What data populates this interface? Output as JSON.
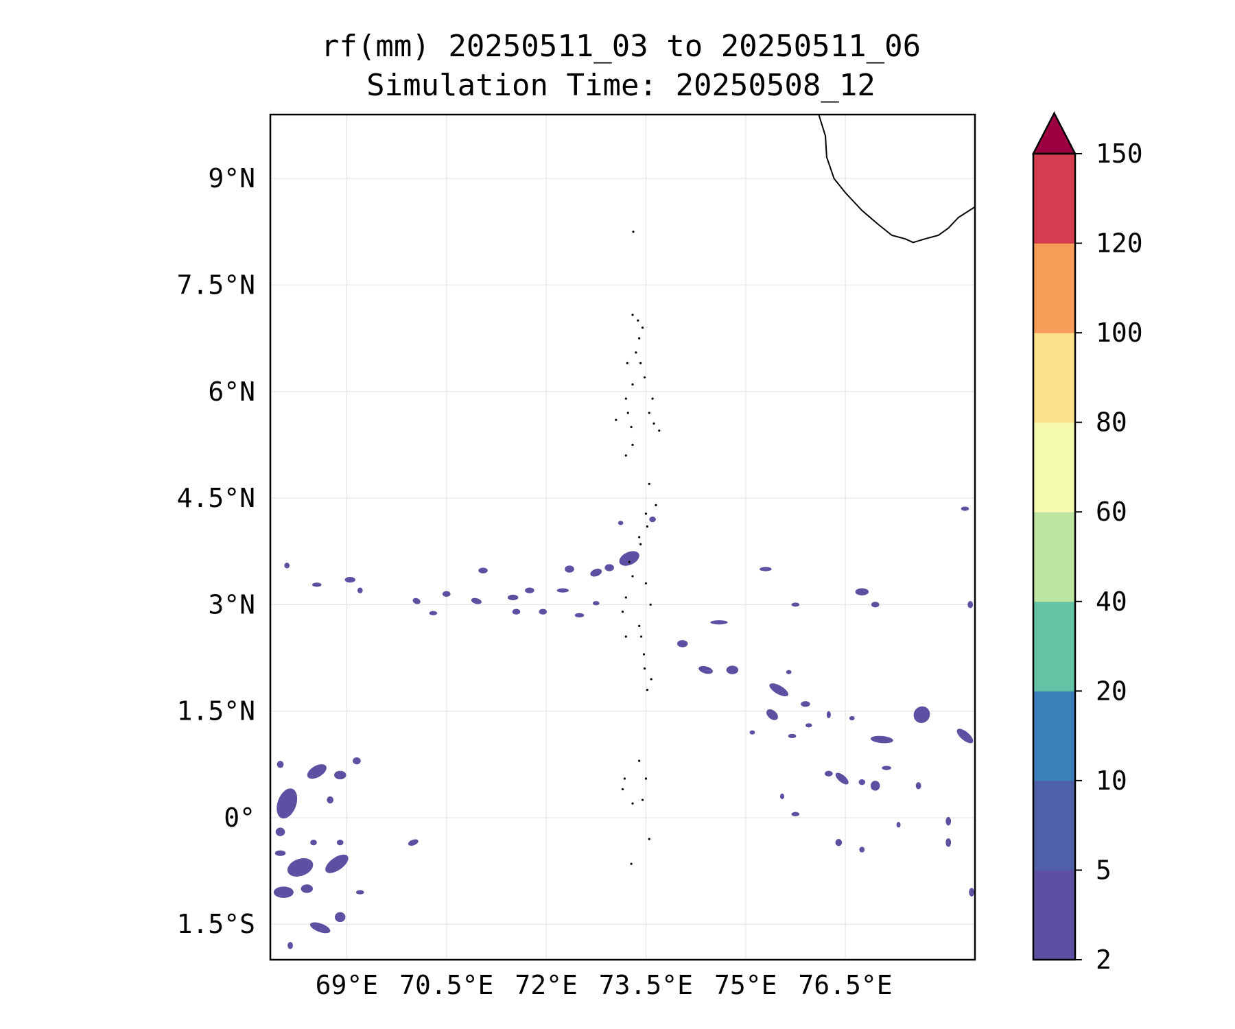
{
  "title": {
    "line1": "rf(mm) 20250511_03 to 20250511_06",
    "line2": "Simulation Time: 20250508_12"
  },
  "map": {
    "lon_range": [
      67.85,
      78.45
    ],
    "lat_range": [
      -2.0,
      9.9
    ],
    "lon_ticks": [
      {
        "value": 69.0,
        "label": "69°E"
      },
      {
        "value": 70.5,
        "label": "70.5°E"
      },
      {
        "value": 72.0,
        "label": "72°E"
      },
      {
        "value": 73.5,
        "label": "73.5°E"
      },
      {
        "value": 75.0,
        "label": "75°E"
      },
      {
        "value": 76.5,
        "label": "76.5°E"
      }
    ],
    "lat_ticks": [
      {
        "value": 9.0,
        "label": "9°N"
      },
      {
        "value": 7.5,
        "label": "7.5°N"
      },
      {
        "value": 6.0,
        "label": "6°N"
      },
      {
        "value": 4.5,
        "label": "4.5°N"
      },
      {
        "value": 3.0,
        "label": "3°N"
      },
      {
        "value": 1.5,
        "label": "1.5°N"
      },
      {
        "value": 0.0,
        "label": "0°"
      },
      {
        "value": -1.5,
        "label": "1.5°S"
      }
    ],
    "gridlines": true,
    "rain_color": "#5e4fa2",
    "coast_color": "#000000",
    "coastline_india": [
      [
        76.1,
        9.9
      ],
      [
        76.2,
        9.6
      ],
      [
        76.22,
        9.3
      ],
      [
        76.33,
        9.0
      ],
      [
        76.5,
        8.8
      ],
      [
        76.75,
        8.55
      ],
      [
        77.0,
        8.35
      ],
      [
        77.2,
        8.2
      ],
      [
        77.4,
        8.15
      ],
      [
        77.52,
        8.1
      ],
      [
        77.7,
        8.15
      ],
      [
        77.9,
        8.2
      ],
      [
        78.05,
        8.3
      ],
      [
        78.2,
        8.45
      ],
      [
        78.45,
        8.6
      ]
    ],
    "islands": [
      [
        73.31,
        8.25
      ],
      [
        73.3,
        7.08
      ],
      [
        73.38,
        7.0
      ],
      [
        73.45,
        6.9
      ],
      [
        73.4,
        6.75
      ],
      [
        73.35,
        6.55
      ],
      [
        73.22,
        6.4
      ],
      [
        73.42,
        6.4
      ],
      [
        73.48,
        6.2
      ],
      [
        73.3,
        6.1
      ],
      [
        73.2,
        5.9
      ],
      [
        73.23,
        5.7
      ],
      [
        73.28,
        5.5
      ],
      [
        73.6,
        5.9
      ],
      [
        73.55,
        5.7
      ],
      [
        73.62,
        5.55
      ],
      [
        73.7,
        5.45
      ],
      [
        73.3,
        5.25
      ],
      [
        73.2,
        5.1
      ],
      [
        73.55,
        4.7
      ],
      [
        73.65,
        4.4
      ],
      [
        73.5,
        4.28
      ],
      [
        73.52,
        4.1
      ],
      [
        73.4,
        3.95
      ],
      [
        73.42,
        3.85
      ],
      [
        73.25,
        3.6
      ],
      [
        73.3,
        3.4
      ],
      [
        73.2,
        3.1
      ],
      [
        73.15,
        2.9
      ],
      [
        73.4,
        2.7
      ],
      [
        73.2,
        2.55
      ],
      [
        73.47,
        2.3
      ],
      [
        73.48,
        2.1
      ],
      [
        73.58,
        1.95
      ],
      [
        73.52,
        1.8
      ],
      [
        73.4,
        0.8
      ],
      [
        73.15,
        0.4
      ],
      [
        73.5,
        0.55
      ],
      [
        73.3,
        0.2
      ],
      [
        73.45,
        0.25
      ],
      [
        73.55,
        -0.3
      ],
      [
        73.28,
        -0.65
      ],
      [
        73.18,
        0.55
      ],
      [
        73.05,
        5.6
      ],
      [
        73.5,
        3.3
      ],
      [
        73.57,
        3.0
      ],
      [
        73.43,
        2.55
      ]
    ]
  },
  "colorbar": {
    "levels": [
      "2",
      "5",
      "10",
      "20",
      "40",
      "60",
      "80",
      "100",
      "120",
      "150"
    ],
    "colors": [
      "#5e4fa2",
      "#4f60a9",
      "#3b7fb9",
      "#65c2a5",
      "#bde4a0",
      "#f3f9ad",
      "#fde08b",
      "#f89c59",
      "#d43d4f",
      "#9e0142"
    ],
    "extend": "max"
  },
  "chart_data": {
    "type": "heatmap",
    "title": "rf(mm) 20250511_03 to 20250511_06 / Simulation Time: 20250508_12",
    "xlabel": "",
    "ylabel": "",
    "xlim": [
      67.85,
      78.45
    ],
    "ylim": [
      -2.0,
      9.9
    ],
    "color_levels": [
      2,
      5,
      10,
      20,
      40,
      60,
      80,
      100,
      120,
      150
    ],
    "rain_cells": [
      {
        "lon": 73.25,
        "lat": 3.65,
        "rx": 0.16,
        "ry": 0.09,
        "rot": -25
      },
      {
        "lon": 72.95,
        "lat": 3.52,
        "rx": 0.07,
        "ry": 0.05,
        "rot": 0
      },
      {
        "lon": 72.75,
        "lat": 3.45,
        "rx": 0.09,
        "ry": 0.05,
        "rot": -20
      },
      {
        "lon": 72.35,
        "lat": 3.5,
        "rx": 0.07,
        "ry": 0.05,
        "rot": 0
      },
      {
        "lon": 72.25,
        "lat": 3.2,
        "rx": 0.09,
        "ry": 0.03,
        "rot": 0
      },
      {
        "lon": 71.75,
        "lat": 3.2,
        "rx": 0.07,
        "ry": 0.04,
        "rot": 0
      },
      {
        "lon": 71.5,
        "lat": 3.1,
        "rx": 0.08,
        "ry": 0.04,
        "rot": 0
      },
      {
        "lon": 71.05,
        "lat": 3.48,
        "rx": 0.07,
        "ry": 0.04,
        "rot": 0
      },
      {
        "lon": 70.95,
        "lat": 3.05,
        "rx": 0.08,
        "ry": 0.04,
        "rot": 15
      },
      {
        "lon": 71.55,
        "lat": 2.9,
        "rx": 0.06,
        "ry": 0.04,
        "rot": 0
      },
      {
        "lon": 70.5,
        "lat": 3.15,
        "rx": 0.06,
        "ry": 0.04,
        "rot": 0
      },
      {
        "lon": 69.05,
        "lat": 3.35,
        "rx": 0.08,
        "ry": 0.04,
        "rot": 0
      },
      {
        "lon": 68.55,
        "lat": 3.28,
        "rx": 0.07,
        "ry": 0.03,
        "rot": 0
      },
      {
        "lon": 69.2,
        "lat": 3.2,
        "rx": 0.04,
        "ry": 0.04,
        "rot": 0
      },
      {
        "lon": 70.05,
        "lat": 3.05,
        "rx": 0.06,
        "ry": 0.04,
        "rot": 20
      },
      {
        "lon": 71.95,
        "lat": 2.9,
        "rx": 0.06,
        "ry": 0.04,
        "rot": 0
      },
      {
        "lon": 72.5,
        "lat": 2.85,
        "rx": 0.07,
        "ry": 0.03,
        "rot": 0
      },
      {
        "lon": 70.3,
        "lat": 2.88,
        "rx": 0.06,
        "ry": 0.03,
        "rot": 0
      },
      {
        "lon": 74.4,
        "lat": 2.08,
        "rx": 0.11,
        "ry": 0.05,
        "rot": 15
      },
      {
        "lon": 74.8,
        "lat": 2.08,
        "rx": 0.09,
        "ry": 0.06,
        "rot": 0
      },
      {
        "lon": 74.05,
        "lat": 2.45,
        "rx": 0.08,
        "ry": 0.05,
        "rot": 0
      },
      {
        "lon": 74.6,
        "lat": 2.75,
        "rx": 0.13,
        "ry": 0.03,
        "rot": 0
      },
      {
        "lon": 75.5,
        "lat": 1.8,
        "rx": 0.16,
        "ry": 0.06,
        "rot": 30
      },
      {
        "lon": 75.4,
        "lat": 1.45,
        "rx": 0.1,
        "ry": 0.06,
        "rot": 40
      },
      {
        "lon": 75.9,
        "lat": 1.6,
        "rx": 0.07,
        "ry": 0.04,
        "rot": 0
      },
      {
        "lon": 77.05,
        "lat": 1.1,
        "rx": 0.17,
        "ry": 0.05,
        "rot": 5
      },
      {
        "lon": 77.12,
        "lat": 0.7,
        "rx": 0.07,
        "ry": 0.03,
        "rot": 0
      },
      {
        "lon": 77.65,
        "lat": 1.45,
        "rx": 0.12,
        "ry": 0.12,
        "rot": 35
      },
      {
        "lon": 78.3,
        "lat": 1.15,
        "rx": 0.15,
        "ry": 0.06,
        "rot": 40
      },
      {
        "lon": 76.75,
        "lat": 3.18,
        "rx": 0.1,
        "ry": 0.05,
        "rot": 0
      },
      {
        "lon": 76.95,
        "lat": 3.0,
        "rx": 0.06,
        "ry": 0.04,
        "rot": 0
      },
      {
        "lon": 75.3,
        "lat": 3.5,
        "rx": 0.09,
        "ry": 0.03,
        "rot": 0
      },
      {
        "lon": 75.75,
        "lat": 3.0,
        "rx": 0.06,
        "ry": 0.02,
        "rot": 0
      },
      {
        "lon": 76.45,
        "lat": 0.55,
        "rx": 0.12,
        "ry": 0.05,
        "rot": 40
      },
      {
        "lon": 76.25,
        "lat": 0.62,
        "rx": 0.06,
        "ry": 0.04,
        "rot": 0
      },
      {
        "lon": 76.95,
        "lat": 0.45,
        "rx": 0.07,
        "ry": 0.07,
        "rot": 0
      },
      {
        "lon": 76.75,
        "lat": 0.5,
        "rx": 0.05,
        "ry": 0.04,
        "rot": 0
      },
      {
        "lon": 77.6,
        "lat": 0.45,
        "rx": 0.04,
        "ry": 0.05,
        "rot": 0
      },
      {
        "lon": 76.4,
        "lat": -0.35,
        "rx": 0.05,
        "ry": 0.05,
        "rot": 0
      },
      {
        "lon": 76.75,
        "lat": -0.45,
        "rx": 0.04,
        "ry": 0.04,
        "rot": 0
      },
      {
        "lon": 75.75,
        "lat": 0.05,
        "rx": 0.06,
        "ry": 0.03,
        "rot": 0
      },
      {
        "lon": 75.55,
        "lat": 0.3,
        "rx": 0.03,
        "ry": 0.04,
        "rot": 0
      },
      {
        "lon": 77.3,
        "lat": -0.1,
        "rx": 0.03,
        "ry": 0.04,
        "rot": 0
      },
      {
        "lon": 78.05,
        "lat": -0.35,
        "rx": 0.04,
        "ry": 0.06,
        "rot": 0
      },
      {
        "lon": 78.05,
        "lat": -0.05,
        "rx": 0.04,
        "ry": 0.06,
        "rot": 0
      },
      {
        "lon": 78.38,
        "lat": 3.0,
        "rx": 0.04,
        "ry": 0.05,
        "rot": 0
      },
      {
        "lon": 78.4,
        "lat": -1.05,
        "rx": 0.04,
        "ry": 0.06,
        "rot": 0
      },
      {
        "lon": 68.1,
        "lat": 0.2,
        "rx": 0.14,
        "ry": 0.22,
        "rot": 20
      },
      {
        "lon": 68.55,
        "lat": 0.65,
        "rx": 0.16,
        "ry": 0.08,
        "rot": -30
      },
      {
        "lon": 68.9,
        "lat": 0.6,
        "rx": 0.09,
        "ry": 0.06,
        "rot": 0
      },
      {
        "lon": 68.75,
        "lat": 0.25,
        "rx": 0.05,
        "ry": 0.05,
        "rot": 0
      },
      {
        "lon": 69.15,
        "lat": 0.8,
        "rx": 0.06,
        "ry": 0.05,
        "rot": 0
      },
      {
        "lon": 68.0,
        "lat": 0.75,
        "rx": 0.05,
        "ry": 0.05,
        "rot": 0
      },
      {
        "lon": 68.3,
        "lat": -0.7,
        "rx": 0.2,
        "ry": 0.12,
        "rot": -20
      },
      {
        "lon": 68.85,
        "lat": -0.65,
        "rx": 0.2,
        "ry": 0.09,
        "rot": -35
      },
      {
        "lon": 68.05,
        "lat": -1.05,
        "rx": 0.15,
        "ry": 0.08,
        "rot": 0
      },
      {
        "lon": 68.4,
        "lat": -1.0,
        "rx": 0.09,
        "ry": 0.06,
        "rot": 0
      },
      {
        "lon": 68.6,
        "lat": -1.55,
        "rx": 0.16,
        "ry": 0.06,
        "rot": 20
      },
      {
        "lon": 68.9,
        "lat": -1.4,
        "rx": 0.08,
        "ry": 0.07,
        "rot": 0
      },
      {
        "lon": 68.0,
        "lat": -0.2,
        "rx": 0.07,
        "ry": 0.06,
        "rot": 0
      },
      {
        "lon": 68.0,
        "lat": -0.5,
        "rx": 0.08,
        "ry": 0.04,
        "rot": 0
      },
      {
        "lon": 68.5,
        "lat": -0.35,
        "rx": 0.05,
        "ry": 0.04,
        "rot": 0
      },
      {
        "lon": 68.9,
        "lat": -0.35,
        "rx": 0.05,
        "ry": 0.04,
        "rot": 0
      },
      {
        "lon": 70.0,
        "lat": -0.35,
        "rx": 0.08,
        "ry": 0.04,
        "rot": -20
      },
      {
        "lon": 69.2,
        "lat": -1.05,
        "rx": 0.06,
        "ry": 0.03,
        "rot": 0
      },
      {
        "lon": 68.15,
        "lat": -1.8,
        "rx": 0.04,
        "ry": 0.05,
        "rot": 0
      },
      {
        "lon": 78.3,
        "lat": 4.35,
        "rx": 0.06,
        "ry": 0.03,
        "rot": 0
      },
      {
        "lon": 73.6,
        "lat": 4.2,
        "rx": 0.05,
        "ry": 0.04,
        "rot": 0
      },
      {
        "lon": 73.12,
        "lat": 4.15,
        "rx": 0.04,
        "ry": 0.03,
        "rot": 0
      },
      {
        "lon": 72.75,
        "lat": 3.02,
        "rx": 0.05,
        "ry": 0.03,
        "rot": 0
      },
      {
        "lon": 68.1,
        "lat": 3.55,
        "rx": 0.04,
        "ry": 0.04,
        "rot": 0
      },
      {
        "lon": 75.95,
        "lat": 1.3,
        "rx": 0.05,
        "ry": 0.03,
        "rot": 0
      },
      {
        "lon": 75.1,
        "lat": 1.2,
        "rx": 0.04,
        "ry": 0.03,
        "rot": 0
      },
      {
        "lon": 75.7,
        "lat": 1.15,
        "rx": 0.06,
        "ry": 0.03,
        "rot": 0
      },
      {
        "lon": 76.25,
        "lat": 1.45,
        "rx": 0.03,
        "ry": 0.05,
        "rot": 0
      },
      {
        "lon": 76.6,
        "lat": 1.4,
        "rx": 0.04,
        "ry": 0.03,
        "rot": 0
      },
      {
        "lon": 75.65,
        "lat": 2.05,
        "rx": 0.04,
        "ry": 0.03,
        "rot": 0
      }
    ]
  }
}
